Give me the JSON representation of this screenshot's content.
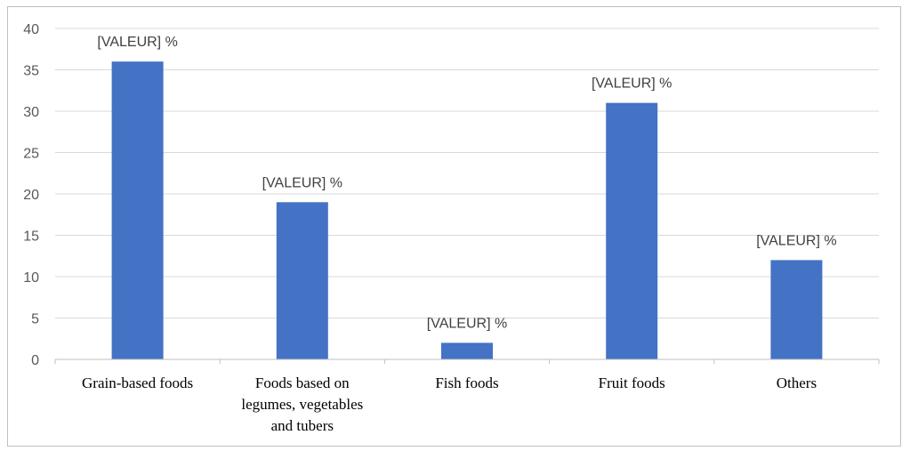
{
  "chart_data": {
    "type": "bar",
    "categories": [
      [
        "Grain-based foods"
      ],
      [
        "Foods based on",
        "legumes, vegetables",
        "and tubers"
      ],
      [
        "Fish foods"
      ],
      [
        "Fruit foods"
      ],
      [
        "Others"
      ]
    ],
    "values": [
      36,
      19,
      2,
      31,
      12
    ],
    "data_labels": [
      "[VALEUR] %",
      "[VALEUR] %",
      "[VALEUR] %",
      "[VALEUR] %",
      "[VALEUR] %"
    ],
    "ylim": [
      0,
      40
    ],
    "yticks": [
      0,
      5,
      10,
      15,
      20,
      25,
      30,
      35,
      40
    ],
    "grid": true,
    "legend": "none",
    "colors": {
      "bar": "#4472c4",
      "grid": "#d9d9d9",
      "axis": "#bfbfbf"
    }
  }
}
